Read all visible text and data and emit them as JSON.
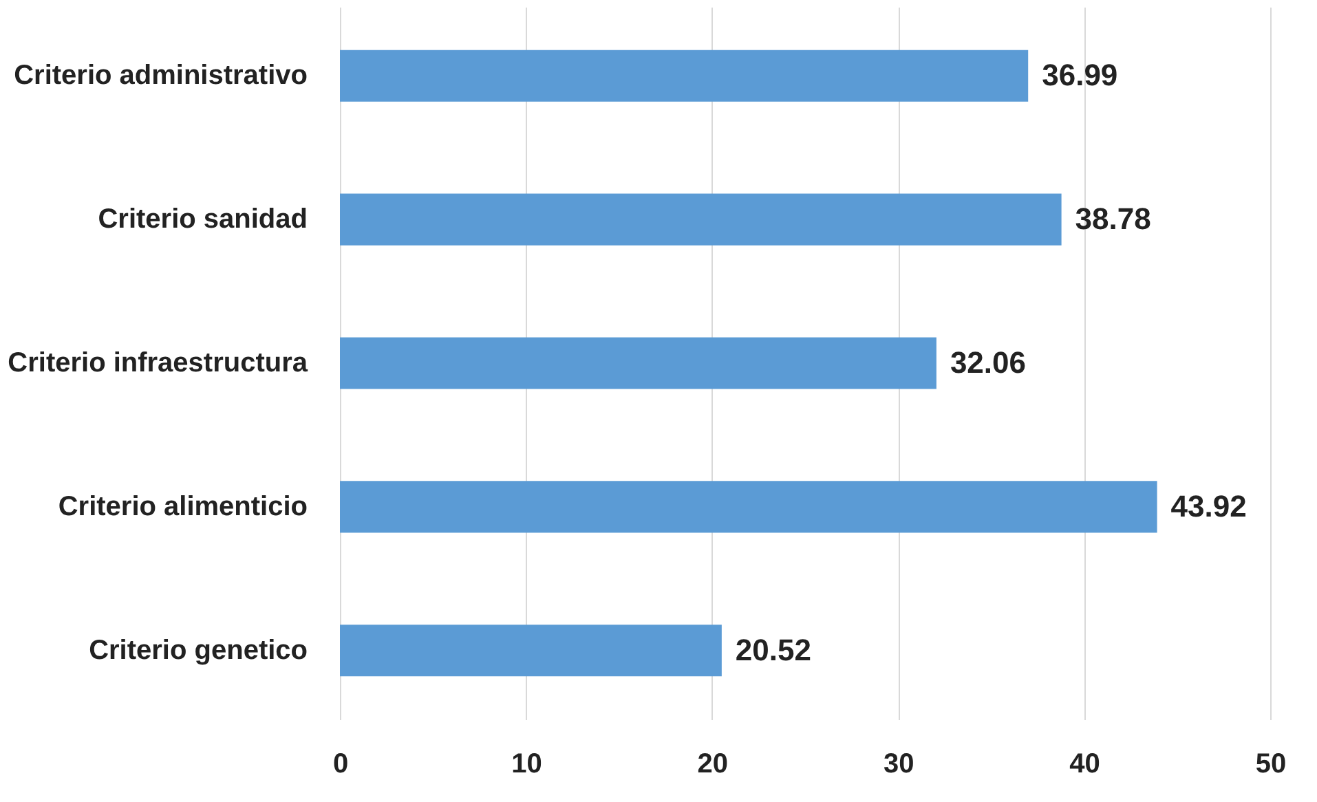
{
  "chart_data": {
    "type": "bar",
    "orientation": "horizontal",
    "categories": [
      "Criterio administrativo",
      "Criterio sanidad",
      "Criterio infraestructura",
      "Criterio alimenticio",
      "Criterio genetico"
    ],
    "values": [
      36.99,
      38.78,
      32.06,
      43.92,
      20.52
    ],
    "color": "#5b9bd5",
    "xlim": [
      0,
      50
    ],
    "xticks": [
      0,
      10,
      20,
      30,
      40,
      50
    ],
    "grid": "x",
    "data_labels": true
  }
}
